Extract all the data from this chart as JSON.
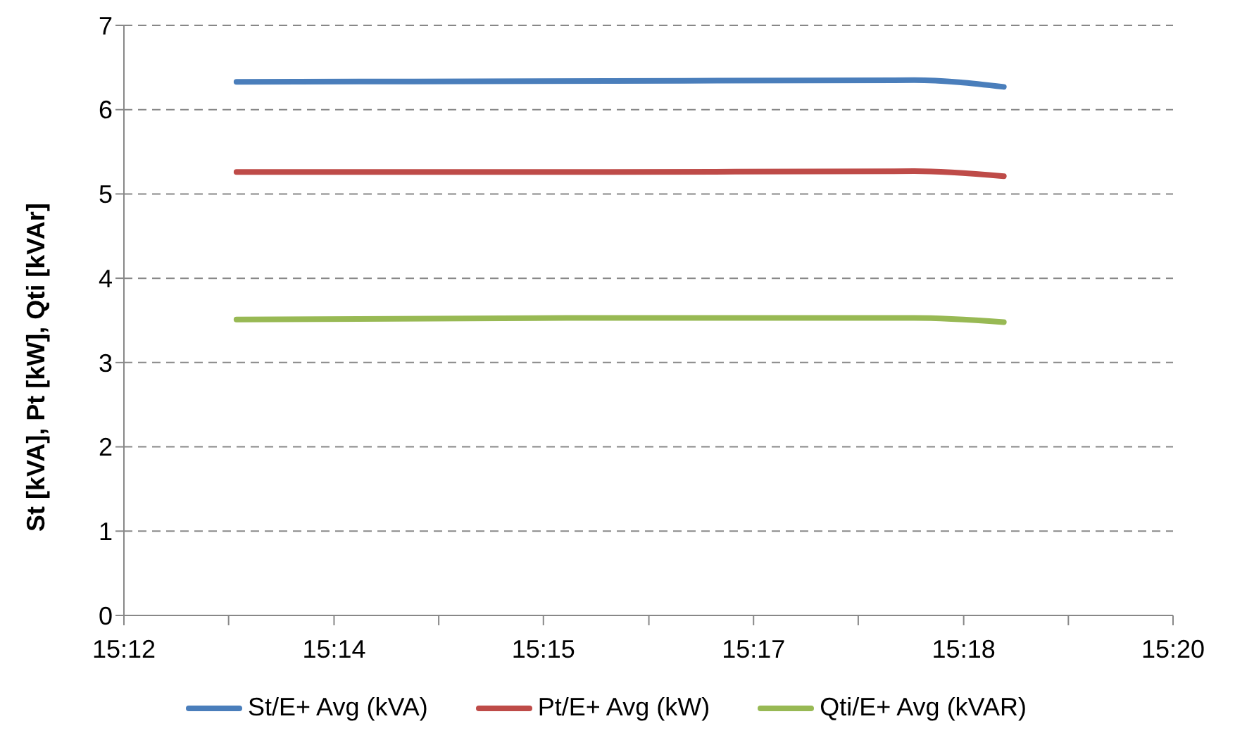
{
  "chart_data": {
    "type": "line",
    "ylabel": "St [kVA], Pt [kW], Qti [kVAr]",
    "x": [
      15.2143,
      15.2617,
      15.3004,
      15.3118
    ],
    "series": [
      {
        "name": "St/E+ Avg (kVA)",
        "color": "#4a7ebb",
        "values": [
          6.33,
          6.34,
          6.35,
          6.27
        ]
      },
      {
        "name": "Pt/E+ Avg (kW)",
        "color": "#be4b48",
        "values": [
          5.26,
          5.26,
          5.27,
          5.21
        ]
      },
      {
        "name": "Qti/E+ Avg (kVAR)",
        "color": "#98b954",
        "values": [
          3.51,
          3.53,
          3.53,
          3.48
        ]
      }
    ],
    "xlim": [
      15.2,
      15.3333
    ],
    "xticks": [
      {
        "value": 15.2,
        "label": "15:12"
      },
      {
        "value": 15.2133,
        "label": null
      },
      {
        "value": 15.2267,
        "label": "15:14"
      },
      {
        "value": 15.24,
        "label": null
      },
      {
        "value": 15.2533,
        "label": "15:15"
      },
      {
        "value": 15.2667,
        "label": null
      },
      {
        "value": 15.28,
        "label": "15:17"
      },
      {
        "value": 15.2933,
        "label": null
      },
      {
        "value": 15.3067,
        "label": "15:18"
      },
      {
        "value": 15.32,
        "label": null
      },
      {
        "value": 15.3333,
        "label": "15:20"
      }
    ],
    "ylim": [
      0,
      7
    ],
    "yticks": [
      0,
      1,
      2,
      3,
      4,
      5,
      6,
      7
    ],
    "grid": "y",
    "legend": "bottom",
    "marker": "none",
    "line_style": "solid"
  }
}
